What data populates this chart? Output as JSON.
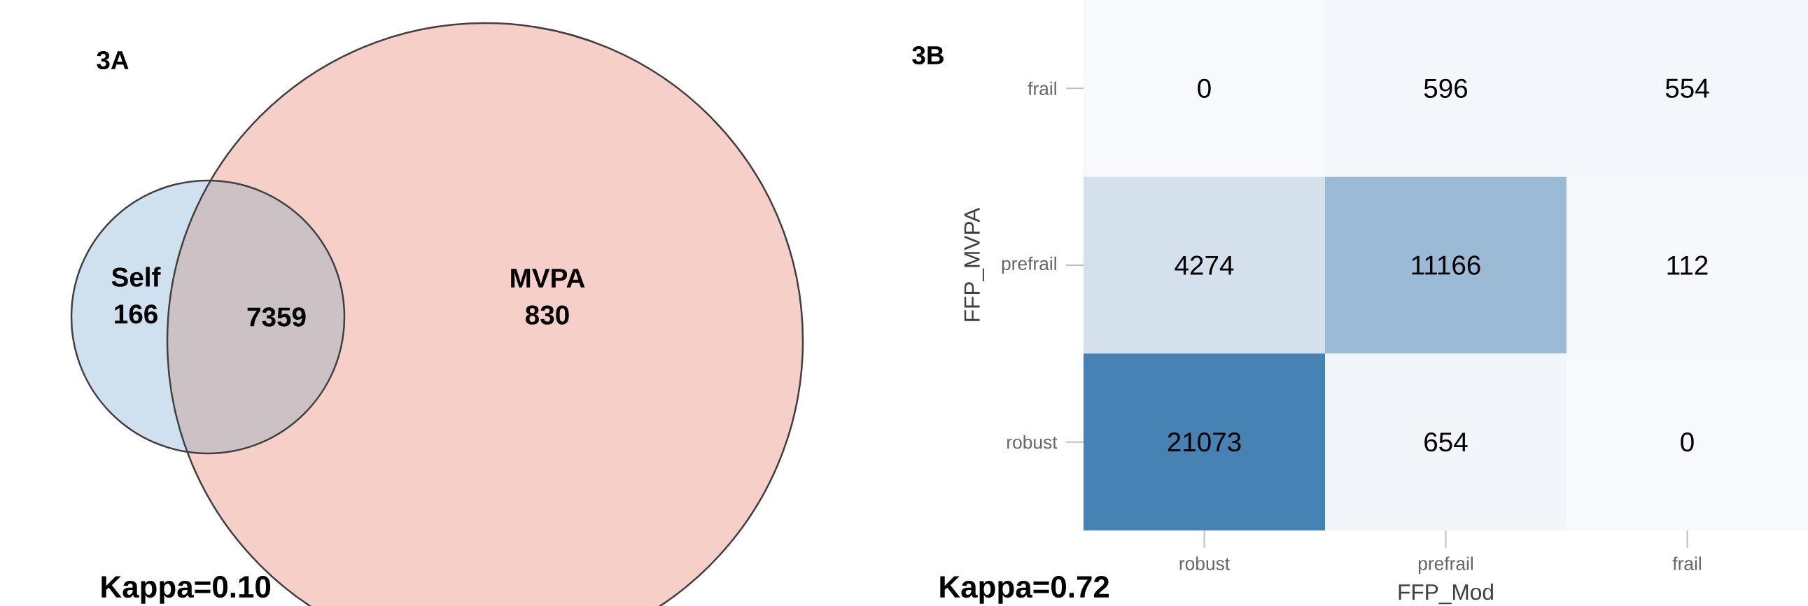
{
  "chart_data": [
    {
      "type": "other",
      "title": "3A",
      "categories": [
        "Self",
        "MVPA"
      ],
      "values": [
        166,
        830
      ],
      "colors": [
        "#cfe0ee",
        "#f7cfc9"
      ],
      "data_labels": true,
      "annotations": [
        "7359",
        "Kappa=0.10"
      ]
    },
    {
      "type": "heatmap",
      "title": "3B",
      "categories": [
        "robust",
        "prefrail",
        "frail"
      ],
      "y_categories": [
        "frail",
        "prefrail",
        "robust"
      ],
      "cells": [
        [
          0,
          596,
          554
        ],
        [
          4274,
          11166,
          112
        ],
        [
          21073,
          654,
          0
        ]
      ],
      "xlabel": "FFP_Mod",
      "ylabel": "FFP_MVPA",
      "data_labels": true,
      "annotations": [
        "Kappa=0.72"
      ]
    }
  ]
}
